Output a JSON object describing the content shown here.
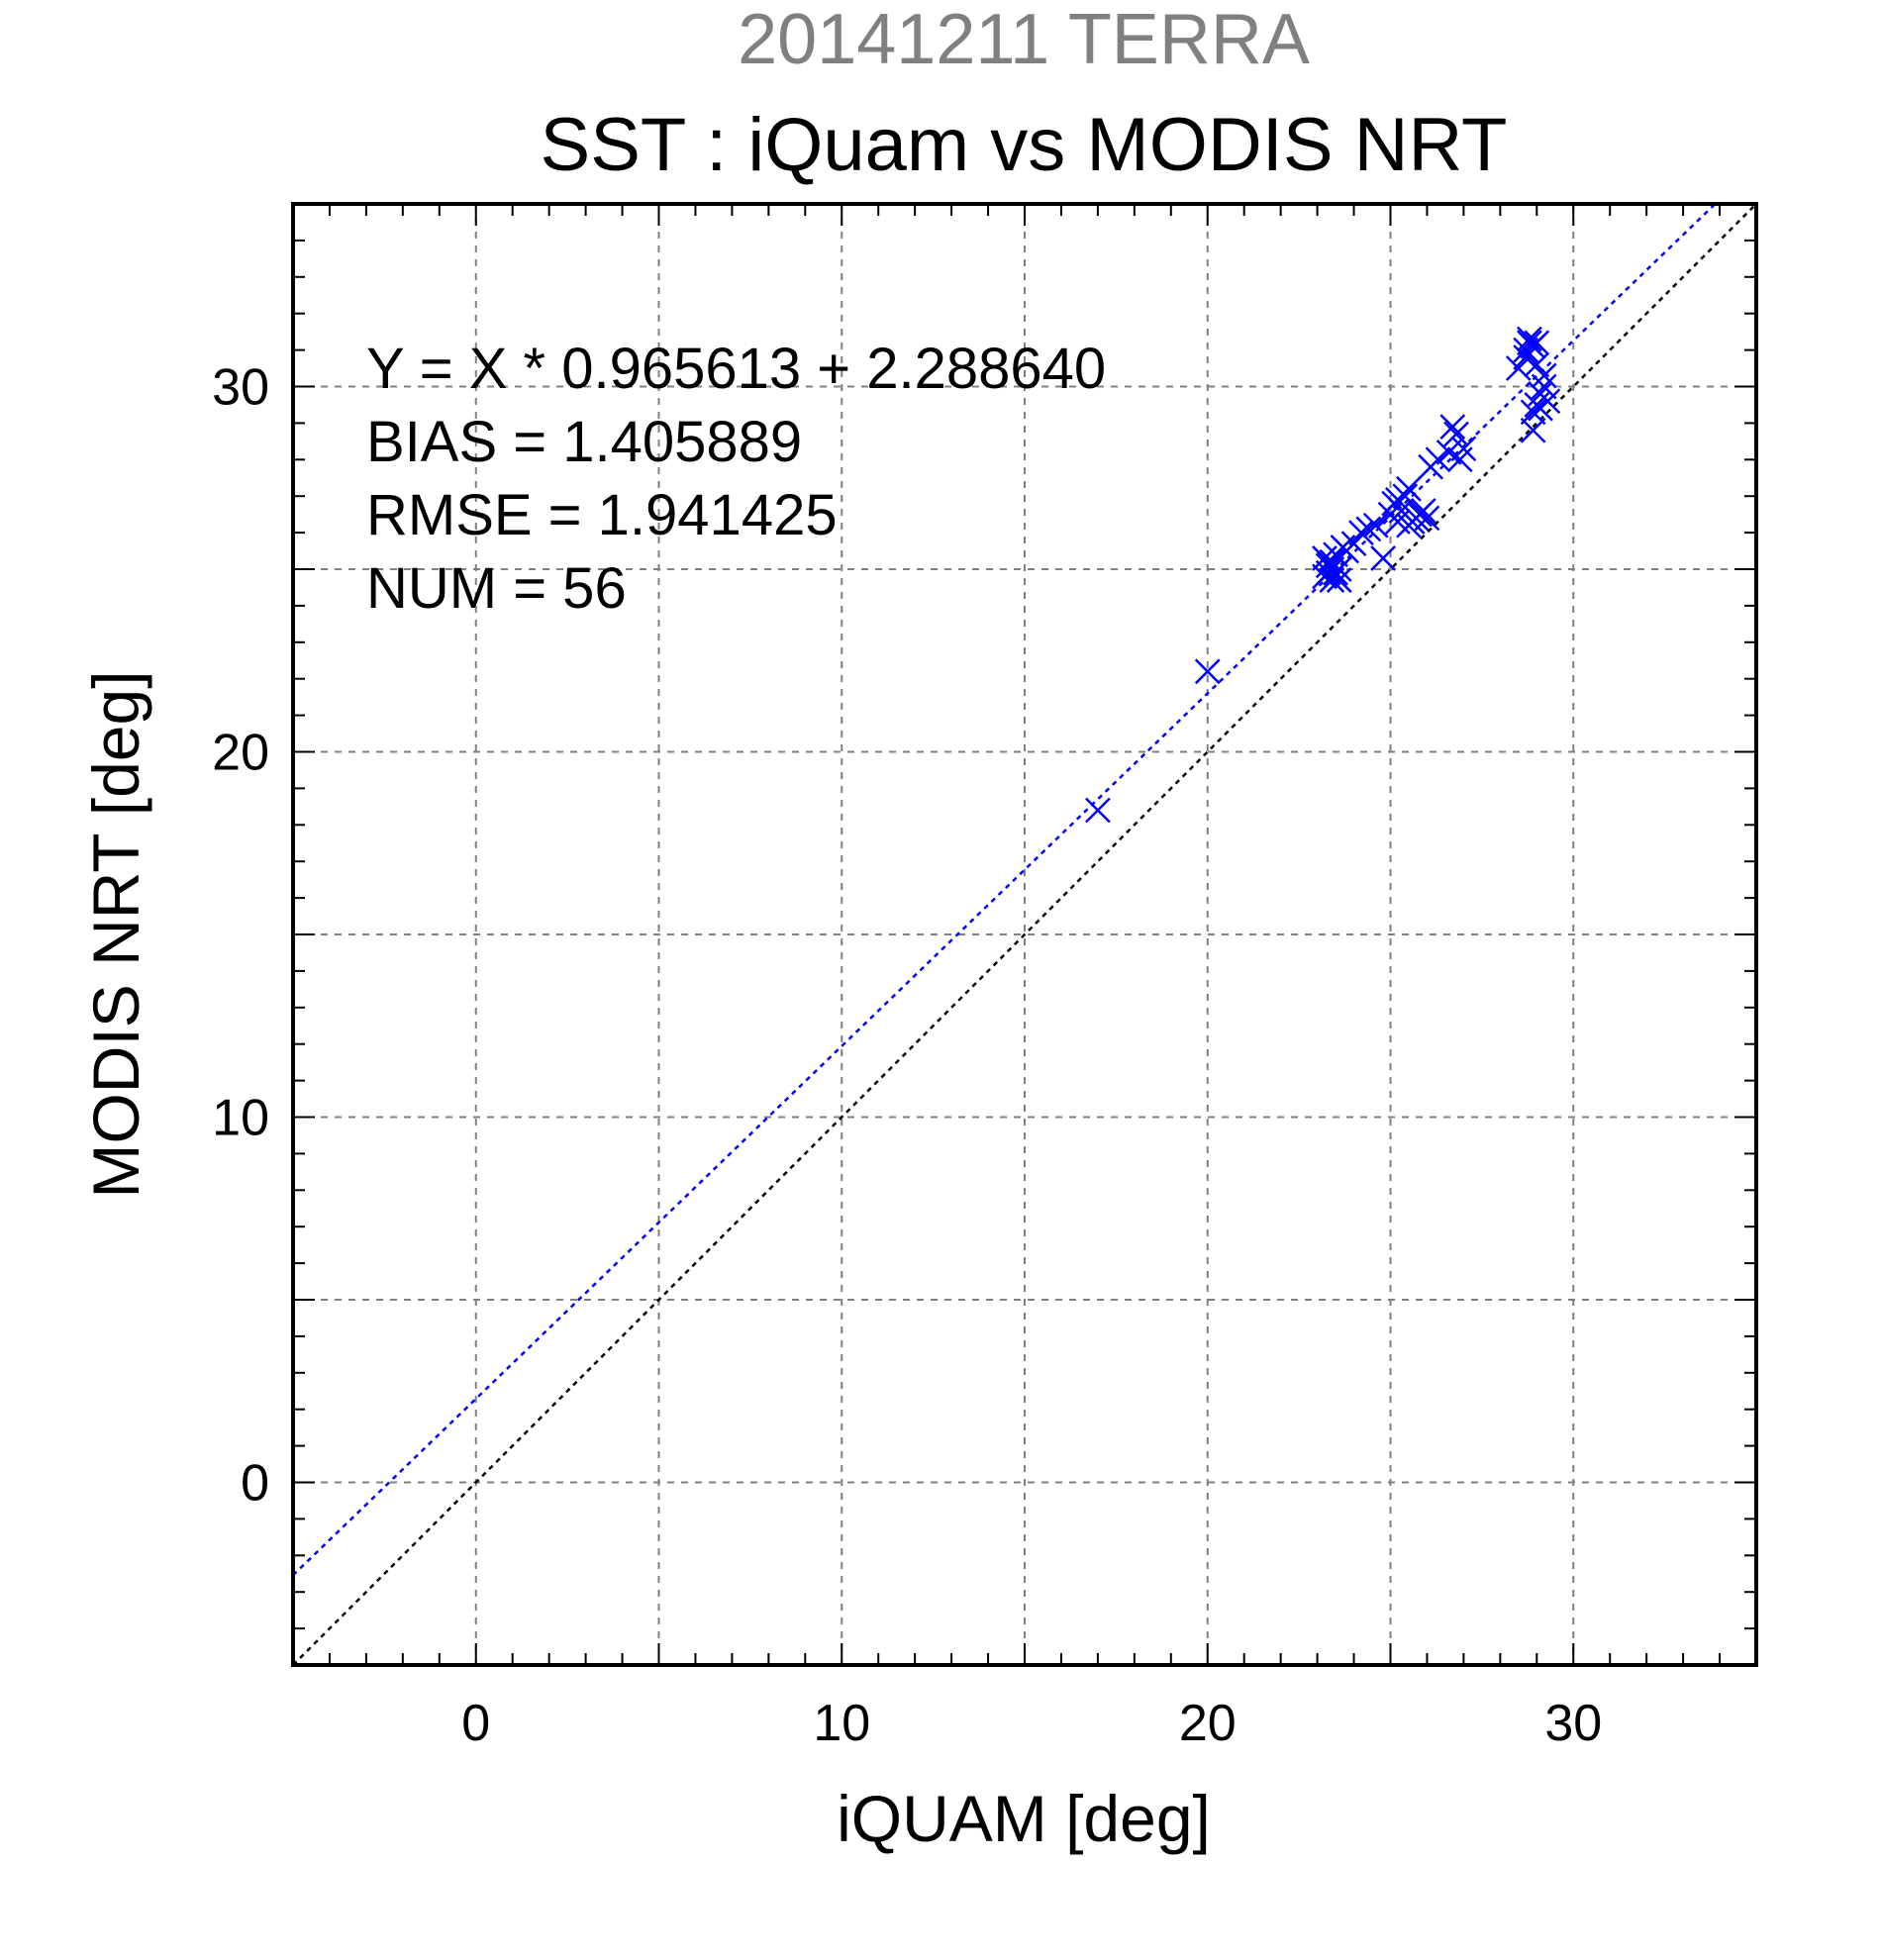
{
  "chart_data": {
    "type": "scatter",
    "suptitle": "20141211 TERRA",
    "title": "SST : iQuam vs MODIS NRT",
    "xlabel": "iQUAM [deg]",
    "ylabel": "MODIS NRT [deg]",
    "xlim": [
      -5,
      35
    ],
    "ylim": [
      -5,
      35
    ],
    "xticks": [
      0,
      10,
      20,
      30
    ],
    "yticks": [
      0,
      10,
      20,
      30
    ],
    "grid": true,
    "grid_step": 5,
    "minor_tick_step": 1,
    "marker": "x",
    "colors": {
      "points": "#0000ff",
      "fit_line": "#0000ff",
      "identity_line": "#000000",
      "grid": "#808080",
      "suptitle": "#808080"
    },
    "fit_line": {
      "slope": 0.965613,
      "intercept": 2.28864
    },
    "identity_line": {
      "slope": 1,
      "intercept": 0
    },
    "annotations": [
      "Y = X * 0.965613 + 2.288640",
      "BIAS = 1.405889",
      "RMSE = 1.941425",
      "NUM = 56"
    ],
    "points": [
      [
        17.0,
        18.4
      ],
      [
        20.0,
        22.2
      ],
      [
        23.2,
        24.8
      ],
      [
        23.3,
        25.1
      ],
      [
        23.2,
        25.3
      ],
      [
        23.4,
        24.7
      ],
      [
        23.5,
        24.9
      ],
      [
        23.6,
        25.0
      ],
      [
        23.5,
        25.4
      ],
      [
        23.7,
        25.6
      ],
      [
        23.4,
        25.0
      ],
      [
        23.3,
        24.9
      ],
      [
        23.6,
        24.7
      ],
      [
        23.8,
        25.5
      ],
      [
        24.0,
        25.7
      ],
      [
        24.2,
        26.0
      ],
      [
        24.4,
        26.1
      ],
      [
        24.6,
        26.2
      ],
      [
        24.8,
        25.3
      ],
      [
        25.0,
        26.5
      ],
      [
        25.1,
        26.8
      ],
      [
        25.2,
        26.3
      ],
      [
        25.3,
        26.6
      ],
      [
        25.4,
        27.0
      ],
      [
        25.5,
        27.2
      ],
      [
        25.6,
        26.3
      ],
      [
        25.7,
        26.4
      ],
      [
        25.8,
        26.5
      ],
      [
        25.9,
        26.6
      ],
      [
        26.0,
        26.4
      ],
      [
        26.1,
        27.8
      ],
      [
        26.3,
        28.0
      ],
      [
        26.6,
        28.2
      ],
      [
        26.7,
        28.9
      ],
      [
        26.8,
        28.7
      ],
      [
        27.0,
        28.3
      ],
      [
        26.9,
        28.0
      ],
      [
        28.5,
        30.5
      ],
      [
        28.7,
        30.8
      ],
      [
        28.8,
        31.2
      ],
      [
        28.9,
        31.1
      ],
      [
        28.8,
        31.3
      ],
      [
        29.0,
        31.2
      ],
      [
        28.9,
        29.3
      ],
      [
        29.0,
        29.5
      ],
      [
        29.1,
        29.8
      ],
      [
        29.2,
        30.0
      ],
      [
        29.3,
        29.6
      ],
      [
        28.9,
        28.8
      ],
      [
        29.0,
        30.6
      ],
      [
        29.2,
        30.3
      ],
      [
        28.7,
        31.0
      ],
      [
        29.1,
        29.4
      ],
      [
        25.5,
        26.2
      ],
      [
        25.2,
        26.9
      ],
      [
        23.4,
        25.2
      ]
    ]
  }
}
